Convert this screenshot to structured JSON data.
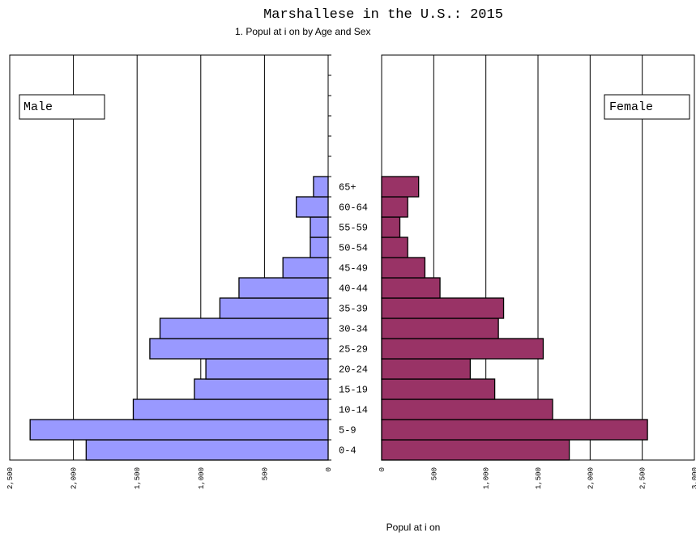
{
  "chart_data": {
    "type": "bar",
    "title": "Marshallese in the U.S.: 2015",
    "subtitle": "1. Popul at i on by Age and Sex",
    "xlabel": "Popul at i on",
    "categories": [
      "0-4",
      "5-9",
      "10-14",
      "15-19",
      "20-24",
      "25-29",
      "30-34",
      "35-39",
      "40-44",
      "45-49",
      "50-54",
      "55-59",
      "60-64",
      "65+"
    ],
    "series": [
      {
        "name": "Male",
        "color": "#9999ff",
        "values": [
          1900,
          2340,
          1530,
          1050,
          960,
          1400,
          1320,
          850,
          700,
          355,
          140,
          140,
          250,
          115
        ]
      },
      {
        "name": "Female",
        "color": "#993366",
        "values": [
          1800,
          2550,
          1640,
          1085,
          850,
          1550,
          1120,
          1170,
          560,
          415,
          250,
          175,
          250,
          355
        ]
      }
    ],
    "male_axis": {
      "range": [
        0,
        2500
      ],
      "ticks": [
        2500,
        2000,
        1500,
        1000,
        500,
        0
      ],
      "tick_labels": [
        "2,500",
        "2,000",
        "1,500",
        "1,000",
        "500",
        "0"
      ]
    },
    "female_axis": {
      "range": [
        0,
        3000
      ],
      "ticks": [
        0,
        500,
        1000,
        1500,
        2000,
        2500,
        3000
      ],
      "tick_labels": [
        "0",
        "500",
        "1,000",
        "1,500",
        "2,000",
        "2,500",
        "3,000"
      ]
    },
    "grid": true
  }
}
